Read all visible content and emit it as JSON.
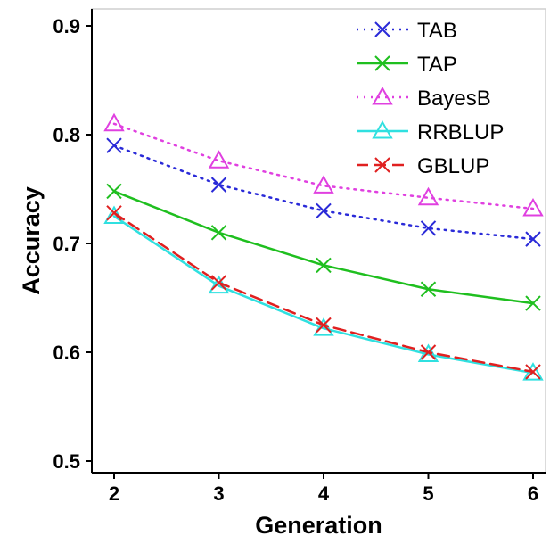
{
  "chart_data": {
    "type": "line",
    "xlabel": "Generation",
    "ylabel": "Accuracy",
    "x": [
      2,
      3,
      4,
      5,
      6
    ],
    "xlim": [
      2,
      6
    ],
    "ylim": [
      0.5,
      0.9
    ],
    "yticks": [
      "0.5",
      "0.6",
      "0.7",
      "0.8",
      "0.9"
    ],
    "xticks": [
      "2",
      "3",
      "4",
      "5",
      "6"
    ],
    "grid": false,
    "legend_position": "top-right",
    "series": [
      {
        "name": "TAB",
        "values": [
          0.79,
          0.754,
          0.73,
          0.714,
          0.704
        ],
        "color": "#2a2ad8",
        "line": "dotted",
        "marker": "x"
      },
      {
        "name": "TAP",
        "values": [
          0.748,
          0.71,
          0.68,
          0.658,
          0.645
        ],
        "color": "#1fbf1f",
        "line": "solid",
        "marker": "x"
      },
      {
        "name": "BayesB",
        "values": [
          0.81,
          0.776,
          0.753,
          0.742,
          0.732
        ],
        "color": "#e040e0",
        "line": "dotted",
        "marker": "triangle"
      },
      {
        "name": "RRBLUP",
        "values": [
          0.725,
          0.661,
          0.622,
          0.598,
          0.581
        ],
        "color": "#2fe0e0",
        "line": "solid",
        "marker": "triangle"
      },
      {
        "name": "GBLUP",
        "values": [
          0.728,
          0.664,
          0.625,
          0.6,
          0.582
        ],
        "color": "#e02020",
        "line": "dashed",
        "marker": "x"
      }
    ]
  }
}
